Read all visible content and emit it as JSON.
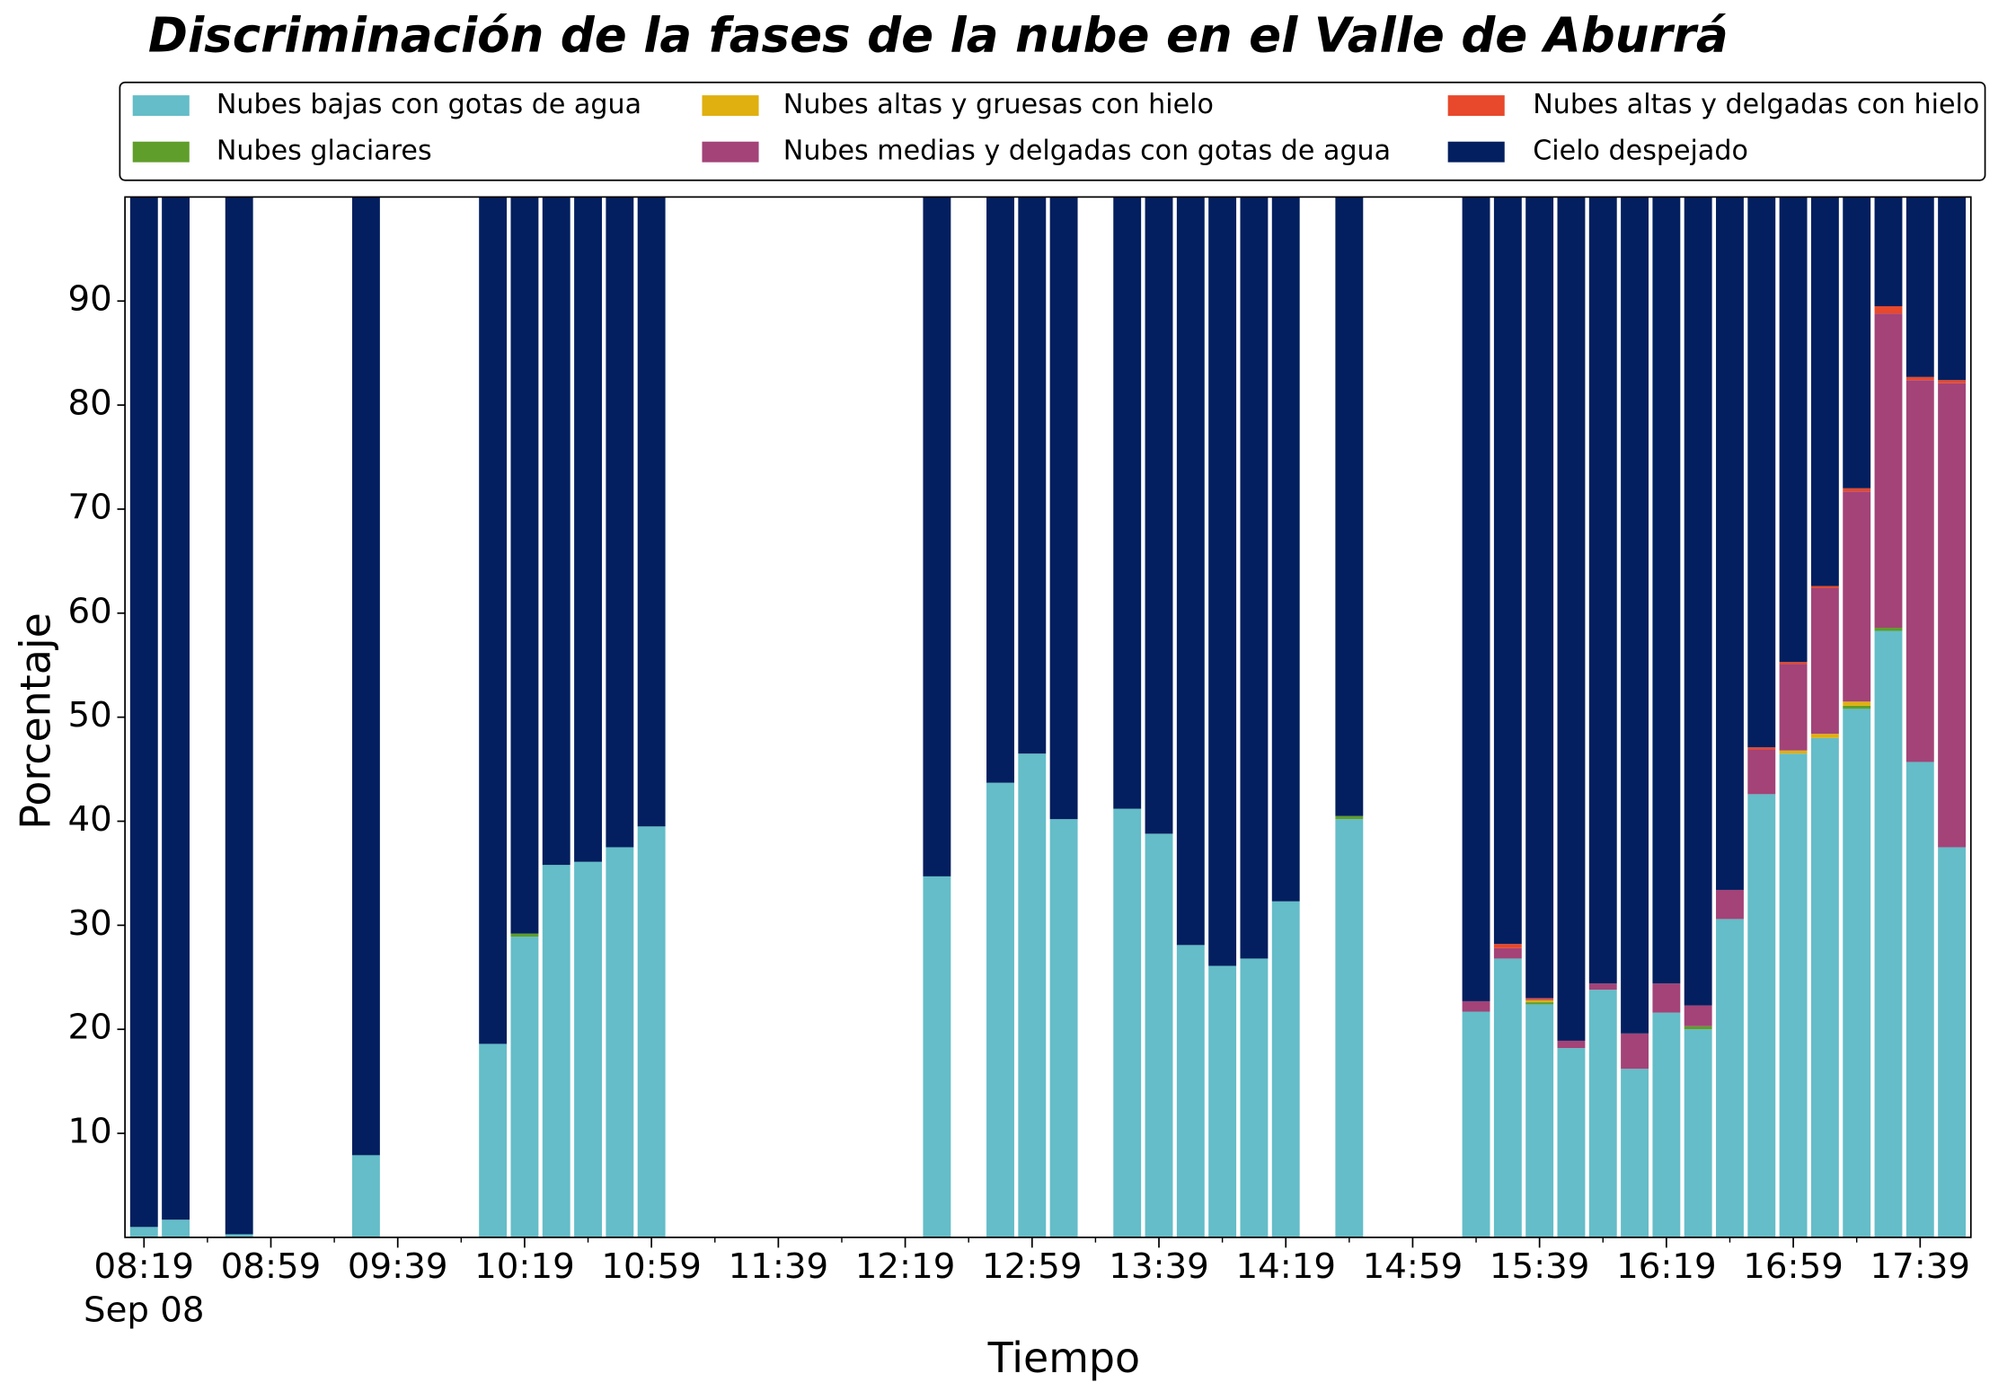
{
  "chart_data": {
    "type": "stacked_bar",
    "title": "Discriminación de la fases de la nube en el Valle de Aburrá",
    "x_label": "Tiempo",
    "y_label": "Porcentaje",
    "x_date_label": "Sep 08",
    "x": [
      "08:19",
      "08:29",
      "08:49",
      "09:29",
      "10:09",
      "10:19",
      "10:29",
      "10:39",
      "10:49",
      "10:59",
      "12:29",
      "12:49",
      "12:59",
      "13:09",
      "13:29",
      "13:39",
      "13:49",
      "13:59",
      "14:09",
      "14:19",
      "14:39",
      "15:19",
      "15:29",
      "15:39",
      "15:49",
      "15:59",
      "16:09",
      "16:19",
      "16:29",
      "16:39",
      "16:49",
      "16:59",
      "17:09",
      "17:19",
      "17:29",
      "17:39",
      "17:49"
    ],
    "xlim": [
      "08:13",
      "17:55"
    ],
    "xticks": [
      "08:19",
      "08:59",
      "09:39",
      "10:19",
      "10:59",
      "11:39",
      "12:19",
      "12:59",
      "13:39",
      "14:19",
      "14:59",
      "15:39",
      "16:19",
      "16:59",
      "17:39"
    ],
    "ylim": [
      0,
      100
    ],
    "yticks": [
      10,
      20,
      30,
      40,
      50,
      60,
      70,
      80,
      90
    ],
    "legend_position": "top",
    "series": [
      {
        "name": "Nubes bajas con gotas de agua",
        "color": "#64bdc8",
        "values": [
          1.0,
          1.7,
          0.3,
          7.9,
          18.6,
          28.9,
          35.8,
          36.1,
          37.5,
          39.5,
          34.7,
          43.7,
          46.5,
          40.2,
          41.2,
          38.8,
          28.1,
          26.1,
          26.8,
          32.3,
          40.2,
          21.7,
          26.8,
          22.4,
          18.2,
          23.8,
          16.2,
          21.6,
          20.0,
          30.6,
          42.6,
          46.5,
          48.0,
          50.8,
          58.3,
          45.7,
          37.5
        ]
      },
      {
        "name": "Nubes glaciares",
        "color": "#5f9e2b",
        "values": [
          0,
          0,
          0,
          0,
          0,
          0.3,
          0,
          0,
          0,
          0,
          0,
          0,
          0,
          0,
          0,
          0,
          0,
          0,
          0,
          0,
          0.3,
          0,
          0,
          0.2,
          0,
          0,
          0,
          0,
          0.3,
          0,
          0,
          0,
          0,
          0.3,
          0.3,
          0,
          0
        ]
      },
      {
        "name": "Nubes altas y gruesas con hielo",
        "color": "#e0b010",
        "values": [
          0,
          0,
          0,
          0,
          0,
          0,
          0,
          0,
          0,
          0,
          0,
          0,
          0,
          0,
          0,
          0,
          0,
          0,
          0,
          0,
          0,
          0,
          0,
          0.2,
          0,
          0,
          0,
          0,
          0,
          0,
          0,
          0.3,
          0.4,
          0.4,
          0,
          0,
          0
        ]
      },
      {
        "name": "Nubes medias y delgadas con gotas de agua",
        "color": "#a34378",
        "values": [
          0,
          0,
          0,
          0,
          0,
          0,
          0,
          0,
          0,
          0,
          0,
          0,
          0,
          0,
          0,
          0,
          0,
          0,
          0,
          0,
          0,
          1.0,
          1.0,
          0.1,
          0.7,
          0.6,
          3.4,
          2.8,
          2.0,
          2.8,
          4.3,
          8.3,
          14.0,
          20.2,
          30.2,
          36.7,
          44.6
        ]
      },
      {
        "name": "Nubes altas y delgadas con hielo",
        "color": "#e8482b",
        "values": [
          0,
          0,
          0,
          0,
          0,
          0,
          0,
          0,
          0,
          0,
          0,
          0,
          0,
          0,
          0,
          0,
          0,
          0,
          0,
          0,
          0,
          0,
          0.4,
          0.1,
          0,
          0,
          0,
          0,
          0,
          0,
          0.2,
          0.2,
          0.2,
          0.3,
          0.7,
          0.3,
          0.3
        ]
      },
      {
        "name": "Cielo despejado",
        "color": "#031f5f",
        "values": [
          99.0,
          98.3,
          99.7,
          92.1,
          81.4,
          70.8,
          64.2,
          63.9,
          62.5,
          60.5,
          65.3,
          56.3,
          53.5,
          59.8,
          58.8,
          61.2,
          71.9,
          73.9,
          73.2,
          67.7,
          59.5,
          77.3,
          71.8,
          77.0,
          81.1,
          75.6,
          80.4,
          75.6,
          77.7,
          66.6,
          52.9,
          44.7,
          37.4,
          28.0,
          10.5,
          17.3,
          17.6
        ]
      }
    ]
  }
}
